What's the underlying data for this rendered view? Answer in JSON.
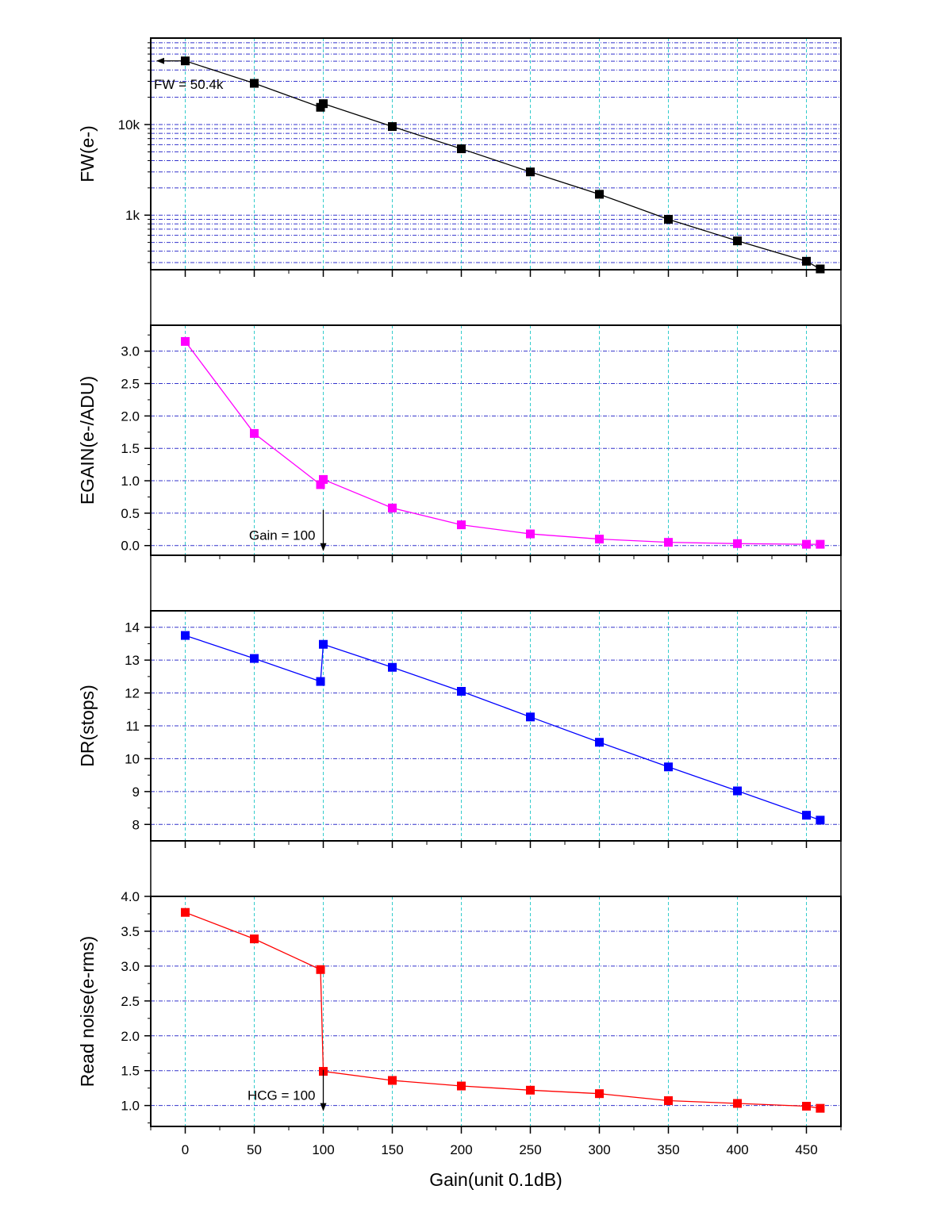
{
  "chart_data": [
    {
      "type": "line",
      "panel": "fw",
      "ylabel": "FW(e-)",
      "yscale": "log",
      "ylim": [
        250,
        90000
      ],
      "yticks": [
        {
          "value": 1000,
          "label": "1k"
        },
        {
          "value": 10000,
          "label": "10k"
        }
      ],
      "color": "#000000",
      "series": [
        {
          "x": [
            0,
            50,
            98,
            100,
            150,
            200,
            250,
            300,
            350,
            400,
            450,
            460
          ],
          "y": [
            50400,
            28500,
            15500,
            17000,
            9500,
            5400,
            3000,
            1700,
            900,
            520,
            310,
            255
          ]
        }
      ],
      "annotations": [
        {
          "text": "FW = 50.4k",
          "x": 0,
          "y": 50400,
          "arrow": "left"
        }
      ]
    },
    {
      "type": "line",
      "panel": "egain",
      "ylabel": "EGAIN(e-/ADU)",
      "yscale": "linear",
      "ylim": [
        -0.15,
        3.4
      ],
      "yticks": [
        {
          "value": 0.0,
          "label": "0.0"
        },
        {
          "value": 0.5,
          "label": "0.5"
        },
        {
          "value": 1.0,
          "label": "1.0"
        },
        {
          "value": 1.5,
          "label": "1.5"
        },
        {
          "value": 2.0,
          "label": "2.0"
        },
        {
          "value": 2.5,
          "label": "2.5"
        },
        {
          "value": 3.0,
          "label": "3.0"
        }
      ],
      "color": "#ff00ff",
      "series": [
        {
          "x": [
            0,
            50,
            98,
            100,
            150,
            200,
            250,
            300,
            350,
            400,
            450,
            460
          ],
          "y": [
            3.15,
            1.73,
            0.94,
            1.02,
            0.58,
            0.32,
            0.18,
            0.1,
            0.05,
            0.03,
            0.02,
            0.02
          ]
        }
      ],
      "annotations": [
        {
          "text": "Gain = 100",
          "x": 100,
          "y": 0.0,
          "arrow": "down"
        }
      ]
    },
    {
      "type": "line",
      "panel": "dr",
      "ylabel": "DR(stops)",
      "yscale": "linear",
      "ylim": [
        7.5,
        14.5
      ],
      "yticks": [
        {
          "value": 8,
          "label": "8"
        },
        {
          "value": 9,
          "label": "9"
        },
        {
          "value": 10,
          "label": "10"
        },
        {
          "value": 11,
          "label": "11"
        },
        {
          "value": 12,
          "label": "12"
        },
        {
          "value": 13,
          "label": "13"
        },
        {
          "value": 14,
          "label": "14"
        }
      ],
      "color": "#0000ff",
      "series": [
        {
          "x": [
            0,
            50,
            98,
            100,
            150,
            200,
            250,
            300,
            350,
            400,
            450,
            460
          ],
          "y": [
            13.75,
            13.05,
            12.35,
            13.48,
            12.78,
            12.05,
            11.27,
            10.5,
            9.75,
            9.02,
            8.28,
            8.13
          ]
        }
      ],
      "annotations": []
    },
    {
      "type": "line",
      "panel": "readnoise",
      "ylabel": "Read noise(e-rms)",
      "yscale": "linear",
      "ylim": [
        0.7,
        4.0
      ],
      "yticks": [
        {
          "value": 1.0,
          "label": "1.0"
        },
        {
          "value": 1.5,
          "label": "1.5"
        },
        {
          "value": 2.0,
          "label": "2.0"
        },
        {
          "value": 2.5,
          "label": "2.5"
        },
        {
          "value": 3.0,
          "label": "3.0"
        },
        {
          "value": 3.5,
          "label": "3.5"
        },
        {
          "value": 4.0,
          "label": "4.0"
        }
      ],
      "color": "#ff0000",
      "series": [
        {
          "x": [
            0,
            50,
            98,
            100,
            150,
            200,
            250,
            300,
            350,
            400,
            450,
            460
          ],
          "y": [
            3.77,
            3.39,
            2.95,
            1.49,
            1.36,
            1.28,
            1.22,
            1.17,
            1.07,
            1.03,
            0.99,
            0.96
          ]
        }
      ],
      "annotations": [
        {
          "text": "HCG = 100",
          "x": 100,
          "y": 1.0,
          "arrow": "down"
        }
      ]
    }
  ],
  "xaxis": {
    "label": "Gain(unit 0.1dB)",
    "xlim": [
      -25,
      475
    ],
    "ticks": [
      0,
      50,
      100,
      150,
      200,
      250,
      300,
      350,
      400,
      450
    ],
    "gridlines": [
      0,
      50,
      100,
      150,
      200,
      250,
      300,
      350,
      400,
      450
    ]
  },
  "colors": {
    "hgrid": "#3333cc",
    "vgrid": "#33cccc"
  }
}
